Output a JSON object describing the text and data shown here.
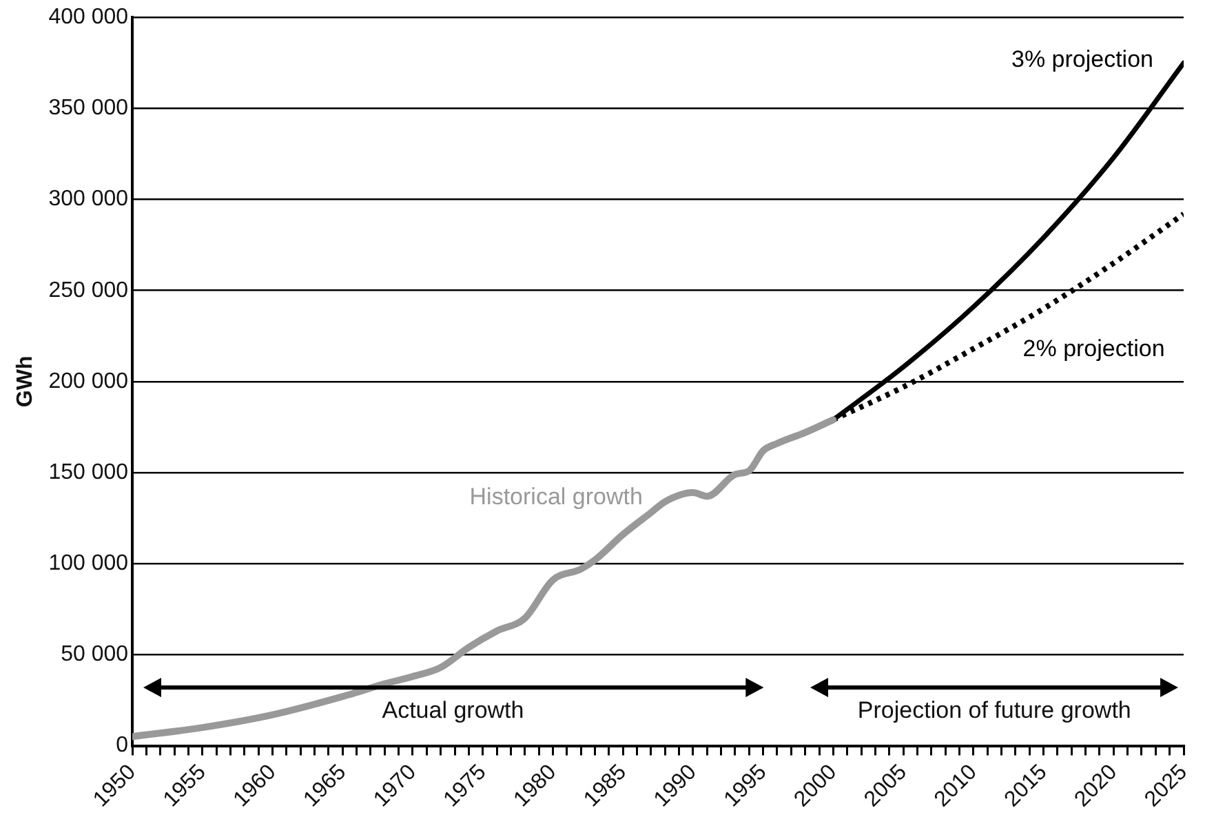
{
  "chart_data": {
    "type": "line",
    "ylabel": "GWh",
    "xlim": [
      1950,
      2025
    ],
    "xticks": [
      1950,
      {
        "value": 1951,
        "label": null
      },
      {
        "value": 1952,
        "label": null
      },
      {
        "value": 1953,
        "label": null
      },
      {
        "value": 1954,
        "label": null
      },
      1955,
      {
        "value": 1956,
        "label": null
      },
      {
        "value": 1957,
        "label": null
      },
      {
        "value": 1958,
        "label": null
      },
      {
        "value": 1959,
        "label": null
      },
      1960,
      {
        "value": 1961,
        "label": null
      },
      {
        "value": 1962,
        "label": null
      },
      {
        "value": 1963,
        "label": null
      },
      {
        "value": 1964,
        "label": null
      },
      1965,
      {
        "value": 1966,
        "label": null
      },
      {
        "value": 1967,
        "label": null
      },
      {
        "value": 1968,
        "label": null
      },
      {
        "value": 1969,
        "label": null
      },
      1970,
      {
        "value": 1971,
        "label": null
      },
      {
        "value": 1972,
        "label": null
      },
      {
        "value": 1973,
        "label": null
      },
      {
        "value": 1974,
        "label": null
      },
      1975,
      {
        "value": 1976,
        "label": null
      },
      {
        "value": 1977,
        "label": null
      },
      {
        "value": 1978,
        "label": null
      },
      {
        "value": 1979,
        "label": null
      },
      1980,
      {
        "value": 1981,
        "label": null
      },
      {
        "value": 1982,
        "label": null
      },
      {
        "value": 1983,
        "label": null
      },
      {
        "value": 1984,
        "label": null
      },
      1985,
      {
        "value": 1986,
        "label": null
      },
      {
        "value": 1987,
        "label": null
      },
      {
        "value": 1988,
        "label": null
      },
      {
        "value": 1989,
        "label": null
      },
      1990,
      {
        "value": 1991,
        "label": null
      },
      {
        "value": 1992,
        "label": null
      },
      {
        "value": 1993,
        "label": null
      },
      {
        "value": 1994,
        "label": null
      },
      1995,
      {
        "value": 1996,
        "label": null
      },
      {
        "value": 1997,
        "label": null
      },
      {
        "value": 1998,
        "label": null
      },
      {
        "value": 1999,
        "label": null
      },
      2000,
      {
        "value": 2001,
        "label": null
      },
      {
        "value": 2002,
        "label": null
      },
      {
        "value": 2003,
        "label": null
      },
      {
        "value": 2004,
        "label": null
      },
      2005,
      {
        "value": 2006,
        "label": null
      },
      {
        "value": 2007,
        "label": null
      },
      {
        "value": 2008,
        "label": null
      },
      {
        "value": 2009,
        "label": null
      },
      2010,
      {
        "value": 2011,
        "label": null
      },
      {
        "value": 2012,
        "label": null
      },
      {
        "value": 2013,
        "label": null
      },
      {
        "value": 2014,
        "label": null
      },
      2015,
      {
        "value": 2016,
        "label": null
      },
      {
        "value": 2017,
        "label": null
      },
      {
        "value": 2018,
        "label": null
      },
      {
        "value": 2019,
        "label": null
      },
      2020,
      {
        "value": 2021,
        "label": null
      },
      {
        "value": 2022,
        "label": null
      },
      {
        "value": 2023,
        "label": null
      },
      {
        "value": 2024,
        "label": null
      },
      2025
    ],
    "ylim": [
      0,
      400000
    ],
    "yticks": [
      0,
      {
        "value": 50000,
        "label": "50 000"
      },
      {
        "value": 100000,
        "label": "100 000"
      },
      {
        "value": 150000,
        "label": "150 000"
      },
      {
        "value": 200000,
        "label": "200 000"
      },
      {
        "value": 250000,
        "label": "250 000"
      },
      {
        "value": 300000,
        "label": "300 000"
      },
      {
        "value": 350000,
        "label": "350 000"
      },
      {
        "value": 400000,
        "label": "400 000"
      }
    ],
    "grid": "y",
    "legend": false,
    "marker": "none",
    "series": [
      {
        "name": "Historical growth",
        "color": "#999999",
        "line_style": "solid",
        "x": [
          1950,
          1955,
          1960,
          1965,
          1968,
          1970,
          1972,
          1974,
          1976,
          1978,
          1980,
          1982,
          1983,
          1985,
          1987,
          1988,
          1990,
          1991,
          1993,
          1994,
          1995,
          1996,
          1998,
          2000
        ],
        "values": [
          5000,
          10000,
          17000,
          27000,
          34000,
          38000,
          43000,
          54000,
          63000,
          70000,
          91000,
          97000,
          102000,
          116000,
          128000,
          134000,
          139000,
          137000,
          149000,
          151000,
          162000,
          166000,
          172000,
          179000
        ]
      },
      {
        "name": "3% projection",
        "color": "#000000",
        "line_style": "solid",
        "x": [
          2000,
          2005,
          2010,
          2015,
          2020,
          2025
        ],
        "values": [
          179000,
          208000,
          241000,
          279000,
          323000,
          375000
        ]
      },
      {
        "name": "2% projection",
        "color": "#000000",
        "line_style": "dotted",
        "x": [
          2000,
          2005,
          2010,
          2015,
          2020,
          2025
        ],
        "values": [
          179000,
          197000,
          218000,
          240000,
          265000,
          292000
        ]
      }
    ],
    "annotations": [
      "Actual growth",
      "Projection of future growth"
    ]
  }
}
